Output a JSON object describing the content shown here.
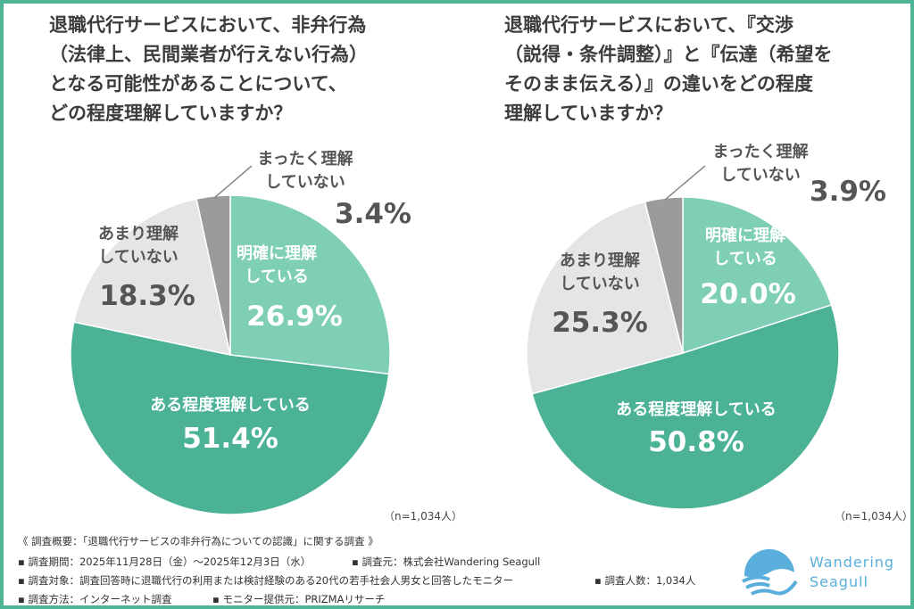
{
  "chart_data": [
    {
      "type": "pie",
      "title": "退職代行サービスにおいて、非弁行為\n（法律上、民間業者が行えない行為）\nとなる可能性があることについて、\nどの程度理解していますか？",
      "categories": [
        "明確に理解\nしている",
        "ある程度理解している",
        "あまり理解\nしていない",
        "まったく理解\nしていない"
      ],
      "values": [
        26.9,
        51.4,
        18.3,
        3.4
      ],
      "labels": [
        "26.9%",
        "51.4%",
        "18.3%",
        "3.4%"
      ],
      "colors": [
        "#7ecfb5",
        "#4cb295",
        "#e5e5e5",
        "#9b9b9b"
      ],
      "sample": "（n=1,034人）"
    },
    {
      "type": "pie",
      "title": "退職代行サービスにおいて、『交渉\n（説得・条件調整）』と『伝達（希望を\nそのまま伝える）』の違いをどの程度\n理解していますか？",
      "categories": [
        "明確に理解\nしている",
        "ある程度理解している",
        "あまり理解\nしていない",
        "まったく理解\nしていない"
      ],
      "values": [
        20.0,
        50.8,
        25.3,
        3.9
      ],
      "labels": [
        "20.0%",
        "50.8%",
        "25.3%",
        "3.9%"
      ],
      "colors": [
        "#7ecfb5",
        "#4cb295",
        "#e5e5e5",
        "#9b9b9b"
      ],
      "sample": "（n=1,034人）"
    }
  ],
  "footer": {
    "line1": "《 調査概要：「退職代行サービスの非弁行為についての認識」に関する調査 》",
    "line2a": "▪ 調査期間：2025年11月28日（金）～2025年12月3日（水）",
    "line2b": "▪ 調査元：株式会社Wandering Seagull",
    "line3a": "▪ 調査対象：調査回答時に退職代行の利用または検討経験のある20代の若手社会人男女と回答したモニター",
    "line3b": "▪ 調査人数：1,034人",
    "line4a": "▪ 調査方法：インターネット調査",
    "line4b": "▪ モニター提供元：PRIZMAリサーチ"
  },
  "logo": {
    "text": "Wandering\nSeagull",
    "color": "#5aaedc"
  }
}
